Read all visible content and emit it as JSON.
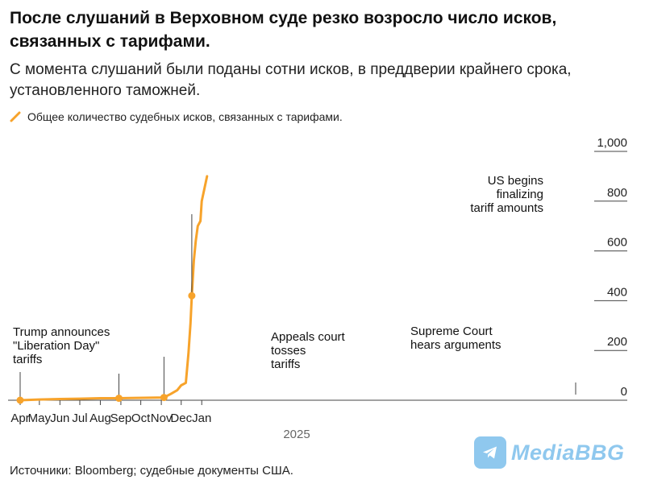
{
  "header": {
    "title": "После слушаний в Верховном суде резко возросло число исков, связанных с тарифами.",
    "subtitle": "С момента слушаний были поданы сотни исков, в преддверии крайнего срока, установленного таможней."
  },
  "legend": {
    "label": "Общее количество судебных исков, связанных с тарифами."
  },
  "footer": {
    "source": "Источники: Bloomberg; судебные документы США."
  },
  "watermark": {
    "text": "MediaBBG"
  },
  "colors": {
    "series": "#f7a32b",
    "axis": "#444444",
    "text": "#1a1a1a",
    "watermark": "#8fc8ee"
  },
  "chart_data": {
    "type": "line",
    "title": "После слушаний в Верховном суде резко возросло число исков, связанных с тарифами.",
    "x_ticks": [
      "Apr",
      "May",
      "Jun",
      "Jul",
      "Aug",
      "Sep",
      "Oct",
      "Nov",
      "Dec",
      "Jan"
    ],
    "x_year_label": "2025",
    "y_ticks": [
      "0",
      "200",
      "400",
      "600",
      "800",
      "1,000"
    ],
    "ylim": [
      0,
      1000
    ],
    "y_axis_position": "right",
    "series": [
      {
        "name": "Общее количество судебных исков, связанных с тарифами.",
        "color": "#f7a32b",
        "points": [
          {
            "x": "2025-04-02",
            "y": 0
          },
          {
            "x": "2025-05-01",
            "y": 3
          },
          {
            "x": "2025-06-01",
            "y": 5
          },
          {
            "x": "2025-07-01",
            "y": 6
          },
          {
            "x": "2025-08-01",
            "y": 8
          },
          {
            "x": "2025-08-29",
            "y": 8
          },
          {
            "x": "2025-09-15",
            "y": 9
          },
          {
            "x": "2025-10-15",
            "y": 10
          },
          {
            "x": "2025-11-05",
            "y": 11
          },
          {
            "x": "2025-11-15",
            "y": 25
          },
          {
            "x": "2025-11-25",
            "y": 40
          },
          {
            "x": "2025-12-01",
            "y": 60
          },
          {
            "x": "2025-12-08",
            "y": 70
          },
          {
            "x": "2025-12-12",
            "y": 190
          },
          {
            "x": "2025-12-15",
            "y": 310
          },
          {
            "x": "2025-12-17",
            "y": 420
          },
          {
            "x": "2025-12-20",
            "y": 560
          },
          {
            "x": "2025-12-23",
            "y": 640
          },
          {
            "x": "2025-12-26",
            "y": 700
          },
          {
            "x": "2025-12-30",
            "y": 720
          },
          {
            "x": "2026-01-01",
            "y": 800
          },
          {
            "x": "2026-01-05",
            "y": 850
          },
          {
            "x": "2026-01-09",
            "y": 900
          }
        ]
      }
    ],
    "annotations": [
      {
        "date": "2025-04-02",
        "y": 0,
        "lines": [
          "Trump announces",
          "\"Liberation Day\"",
          "tariffs"
        ]
      },
      {
        "date": "2025-08-29",
        "y": 8,
        "lines": [
          "Appeals court",
          "tosses",
          "tariffs"
        ]
      },
      {
        "date": "2025-11-05",
        "y": 11,
        "lines": [
          "Supreme Court",
          "hears arguments"
        ]
      },
      {
        "date": "2025-12-17",
        "y": 420,
        "lines": [
          "US begins",
          "finalizing",
          "tariff amounts"
        ]
      }
    ]
  }
}
